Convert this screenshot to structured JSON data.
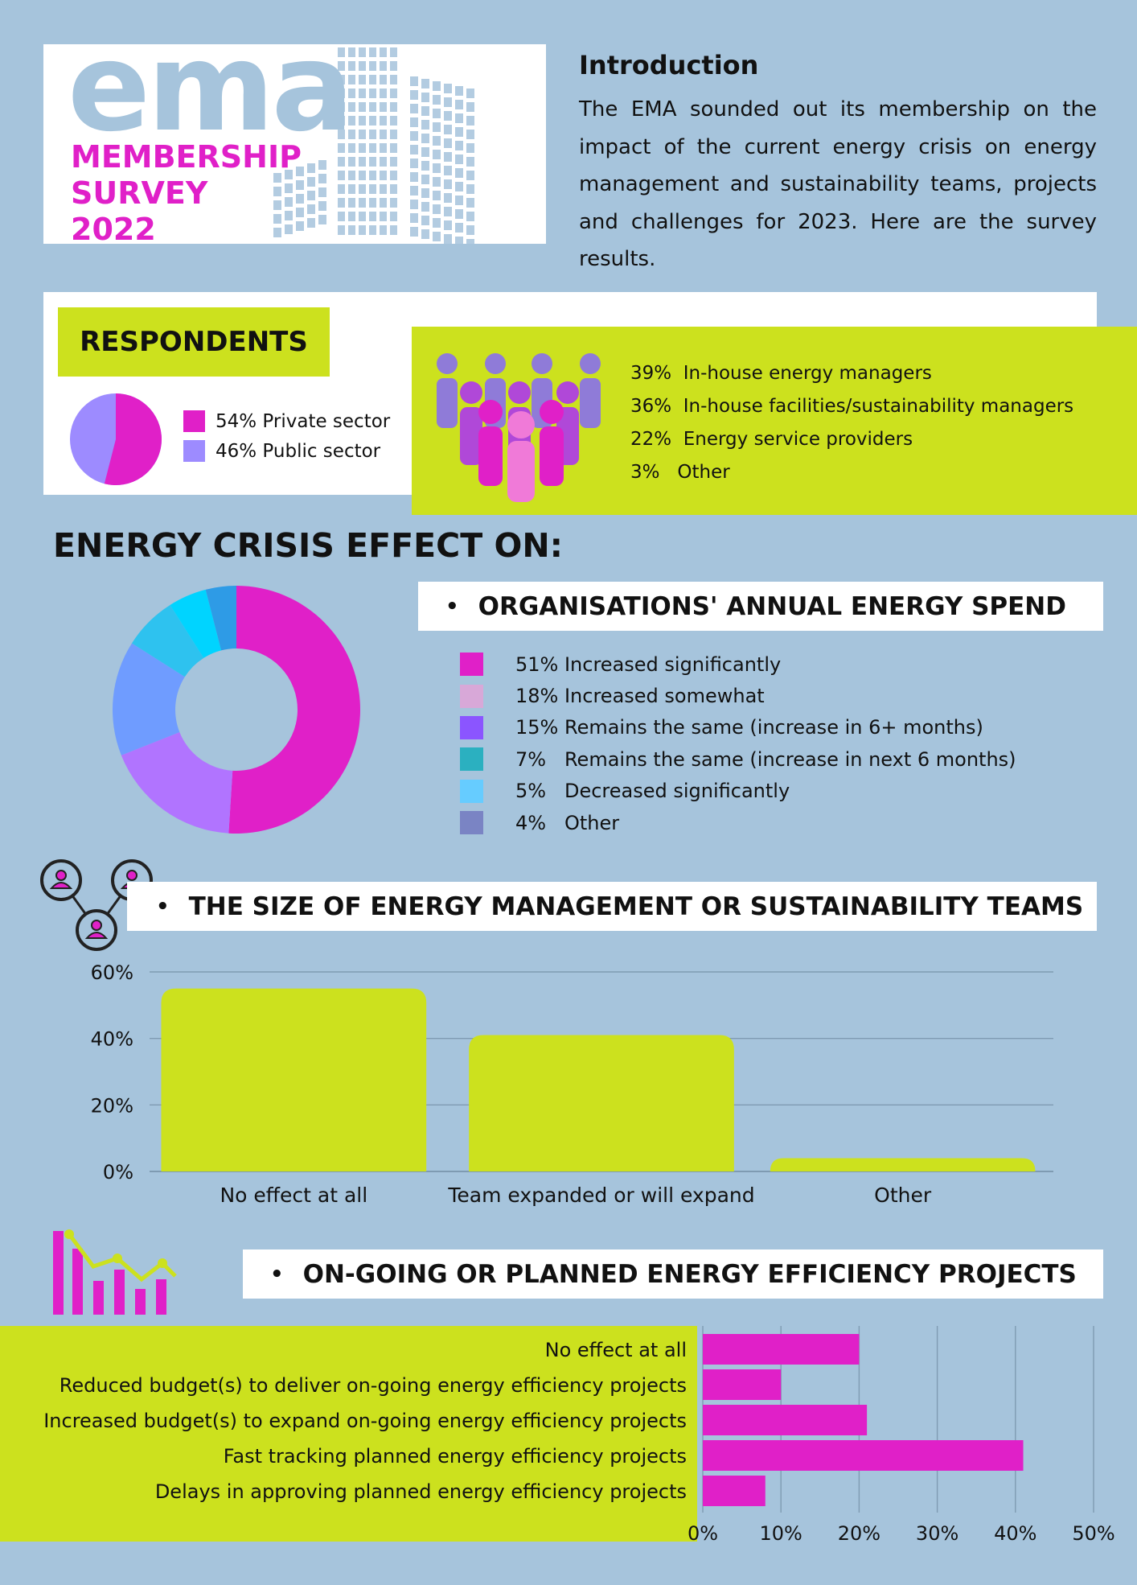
{
  "header": {
    "logo_word": "ema",
    "logo_subtitle": "MEMBERSHIP\nSURVEY\n2022"
  },
  "intro": {
    "title": "Introduction",
    "text": "The EMA sounded out its membership on the impact of the current energy crisis on energy management and sustainability teams, projects and challenges for 2023. Here are the survey results."
  },
  "respondents": {
    "heading": "RESPONDENTS",
    "sector": [
      {
        "label": "54%  Private sector",
        "value": 54,
        "color": "#e020c8"
      },
      {
        "label": "46%  Public sector",
        "value": 46,
        "color": "#9d8bff"
      }
    ],
    "roles": [
      "39%  In-house energy managers",
      "36%  In-house facilities/sustainability managers",
      "22%  Energy service providers",
      "3%   Other"
    ]
  },
  "crisis_heading": "ENERGY CRISIS EFFECT ON:",
  "chart_data": [
    {
      "type": "pie",
      "title": "ORGANISATIONS' ANNUAL ENERGY SPEND",
      "bullet": "•",
      "slices": [
        {
          "label": "51% Increased significantly",
          "value": 51,
          "color": "#e020c8",
          "legend_color": "#e020c8"
        },
        {
          "label": "18% Increased somewhat",
          "value": 18,
          "color": "#b174ff",
          "legend_color": "#d8a8d8"
        },
        {
          "label": "15% Remains the same (increase in 6+ months)",
          "value": 15,
          "color": "#6f9cff",
          "legend_color": "#8b55ff"
        },
        {
          "label": "7%   Remains the same (increase in next 6 months)",
          "value": 7,
          "color": "#2ec2ef",
          "legend_color": "#2bb0c0"
        },
        {
          "label": "5%   Decreased significantly",
          "value": 5,
          "color": "#00d4ff",
          "legend_color": "#66ccff"
        },
        {
          "label": "4%   Other",
          "value": 4,
          "color": "#2e9be6",
          "legend_color": "#7a84c4"
        }
      ]
    },
    {
      "type": "bar",
      "title": "THE SIZE OF ENERGY MANAGEMENT OR SUSTAINABILITY TEAMS",
      "bullet": "•",
      "categories": [
        "No effect at all",
        "Team expanded or will expand",
        "Other"
      ],
      "values": [
        55,
        41,
        4
      ],
      "ylim": [
        0,
        60
      ],
      "yticks": [
        "0%",
        "20%",
        "40%",
        "60%"
      ],
      "ytick_values": [
        0,
        20,
        40,
        60
      ],
      "grid": true,
      "color": "#cce11e"
    },
    {
      "type": "bar",
      "orientation": "horizontal",
      "title": "ON-GOING OR PLANNED ENERGY EFFICIENCY PROJECTS",
      "bullet": "•",
      "categories": [
        "No effect at all",
        "Reduced budget(s) to deliver on-going energy efficiency projects",
        "Increased budget(s) to expand on-going energy efficiency projects",
        "Fast tracking planned energy efficiency projects",
        "Delays in approving planned energy efficiency projects"
      ],
      "values": [
        20,
        10,
        21,
        41,
        8
      ],
      "xlim": [
        0,
        50
      ],
      "xticks": [
        "0%",
        "10%",
        "20%",
        "30%",
        "40%",
        "50%"
      ],
      "xtick_values": [
        0,
        10,
        20,
        30,
        40,
        50
      ],
      "grid": true,
      "color": "#e020c8"
    }
  ],
  "icons": {
    "team": "team-network-icon",
    "people": "people-group-icon",
    "chart": "bar-chart-trend-icon"
  }
}
